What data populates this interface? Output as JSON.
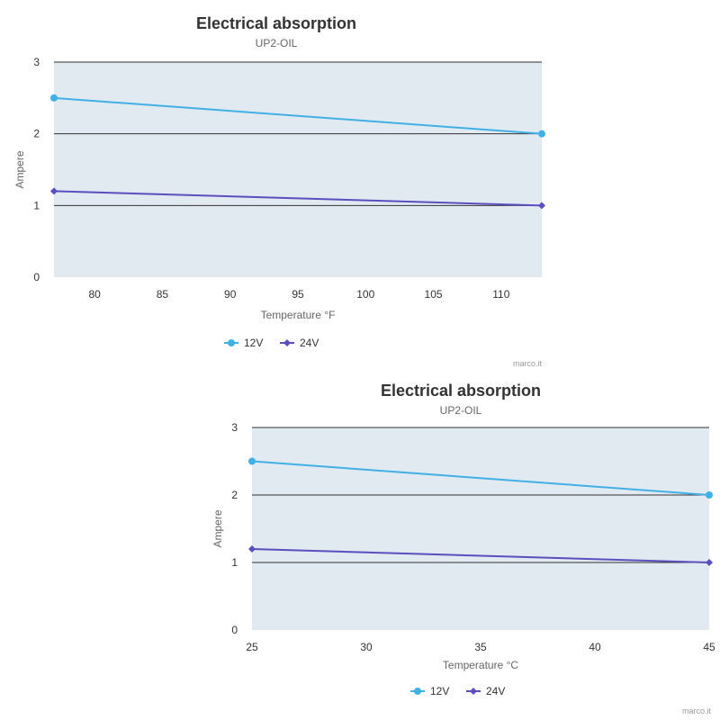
{
  "chart_data": [
    {
      "type": "line",
      "title": "Electrical absorption",
      "subtitle": "UP2-OIL",
      "xlabel": "Temperature °F",
      "ylabel": "Ampere",
      "x_ticks": [
        "80",
        "85",
        "90",
        "95",
        "100",
        "105",
        "110"
      ],
      "y_ticks": [
        "0",
        "1",
        "2",
        "3"
      ],
      "xlim": [
        77,
        113
      ],
      "ylim": [
        0,
        3
      ],
      "grid": true,
      "legend_position": "bottom-center",
      "credit": "marco.it",
      "series": [
        {
          "name": "12V",
          "color": "#41b0e4",
          "marker": "circle",
          "x": [
            77,
            113
          ],
          "y": [
            2.5,
            2.0
          ]
        },
        {
          "name": "24V",
          "color": "#5b4fbf",
          "marker": "diamond",
          "x": [
            77,
            113
          ],
          "y": [
            1.2,
            1.0
          ]
        }
      ]
    },
    {
      "type": "line",
      "title": "Electrical absorption",
      "subtitle": "UP2-OIL",
      "xlabel": "Temperature °C",
      "ylabel": "Ampere",
      "x_ticks": [
        "25",
        "30",
        "35",
        "40",
        "45"
      ],
      "y_ticks": [
        "0",
        "1",
        "2",
        "3"
      ],
      "xlim": [
        25,
        45
      ],
      "ylim": [
        0,
        3
      ],
      "grid": true,
      "legend_position": "bottom-center",
      "credit": "marco.it",
      "series": [
        {
          "name": "12V",
          "color": "#41b0e4",
          "marker": "circle",
          "x": [
            25,
            45
          ],
          "y": [
            2.5,
            2.0
          ]
        },
        {
          "name": "24V",
          "color": "#5b4fbf",
          "marker": "diamond",
          "x": [
            25,
            45
          ],
          "y": [
            1.2,
            1.0
          ]
        }
      ]
    }
  ]
}
